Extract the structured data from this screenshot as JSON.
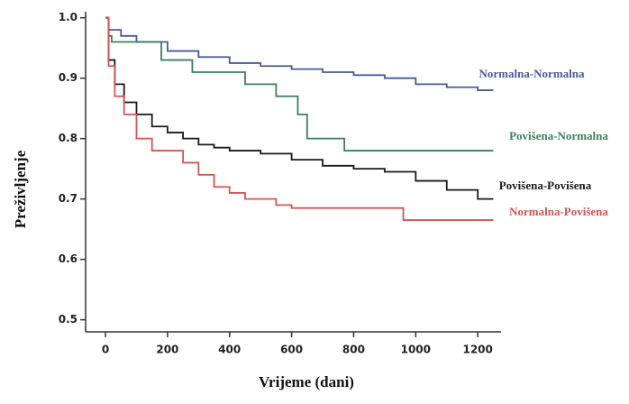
{
  "chart_data": {
    "type": "line",
    "step": true,
    "x_label": "Vrijeme (dani)",
    "y_label": "Preživljenje",
    "xlim": [
      -64,
      1275
    ],
    "ylim": [
      0.48,
      1.01
    ],
    "xticks": [
      0,
      200,
      400,
      600,
      800,
      1000,
      1200
    ],
    "yticks": [
      0.5,
      0.6,
      0.7,
      0.8,
      0.9,
      {
        "value": 1,
        "label": "1.0"
      }
    ],
    "series": [
      {
        "name": "Normalna-Normalna",
        "color": "#4b5a99",
        "x": [
          0,
          10,
          50,
          100,
          200,
          300,
          400,
          500,
          600,
          700,
          800,
          900,
          1000,
          1100,
          1200,
          1250
        ],
        "values": [
          1.0,
          0.98,
          0.97,
          0.96,
          0.945,
          0.935,
          0.925,
          0.92,
          0.915,
          0.91,
          0.905,
          0.9,
          0.89,
          0.885,
          0.88,
          0.88
        ]
      },
      {
        "name": "Povišena-Normalna",
        "color": "#3d7f5c",
        "x": [
          0,
          10,
          20,
          180,
          280,
          450,
          550,
          620,
          650,
          770,
          1250
        ],
        "values": [
          1.0,
          0.97,
          0.96,
          0.93,
          0.91,
          0.89,
          0.87,
          0.84,
          0.8,
          0.78,
          0.78
        ]
      },
      {
        "name": "Povišena-Povišena",
        "color": "#1a1a1a",
        "x": [
          0,
          10,
          30,
          60,
          100,
          150,
          200,
          250,
          300,
          350,
          400,
          500,
          600,
          700,
          800,
          900,
          1000,
          1100,
          1200,
          1250
        ],
        "values": [
          1.0,
          0.93,
          0.89,
          0.86,
          0.84,
          0.82,
          0.81,
          0.8,
          0.79,
          0.785,
          0.78,
          0.775,
          0.765,
          0.755,
          0.75,
          0.745,
          0.73,
          0.715,
          0.7,
          0.7
        ]
      },
      {
        "name": "Normalna-Povišena",
        "color": "#d45555",
        "x": [
          0,
          10,
          30,
          60,
          100,
          150,
          250,
          300,
          350,
          400,
          450,
          550,
          600,
          960,
          1250
        ],
        "values": [
          1.0,
          0.92,
          0.87,
          0.84,
          0.8,
          0.78,
          0.76,
          0.74,
          0.72,
          0.71,
          0.7,
          0.69,
          0.685,
          0.665,
          0.665
        ]
      }
    ]
  }
}
